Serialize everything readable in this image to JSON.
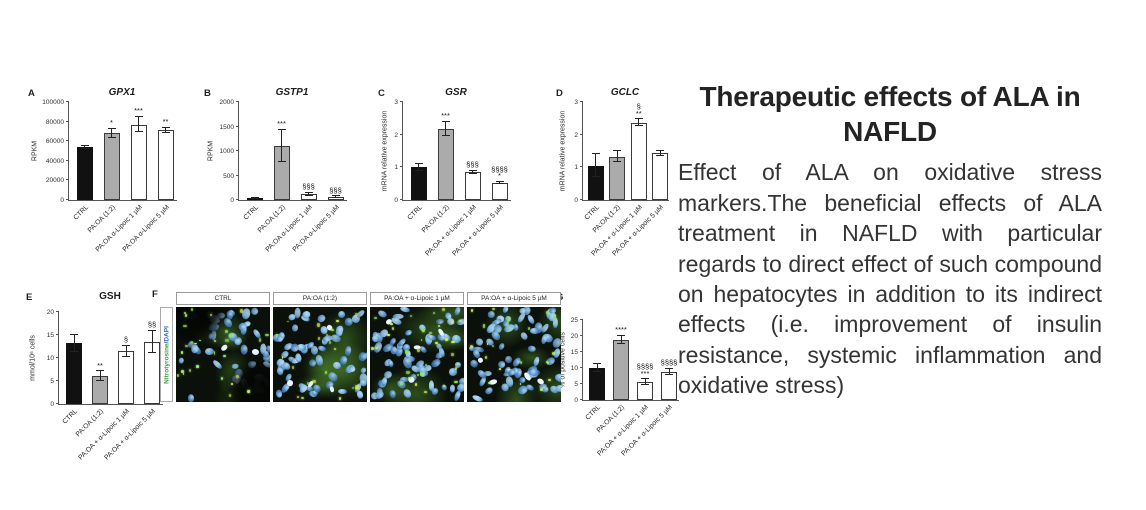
{
  "article": {
    "title": "Therapeutic effects of ALA in NAFLD",
    "body": "Effect of ALA on oxidative stress markers.The beneficial effects of ALA treatment in NAFLD with particular regards to direct effect of such compound on hepatocytes in addition to its indirect effects (i.e. improvement of insulin resistance, systemic inflammation and oxidative stress)"
  },
  "style": {
    "bar_black": "#111111",
    "bar_gray": "#ababab",
    "bar_white": "#ffffff",
    "axis_color": "#555555",
    "nitrotyrosine_green": "#3f9e46",
    "dapi_blue": "#3a64b5"
  },
  "figure": {
    "panel_f": {
      "letter": "F",
      "ylabel_parts": [
        {
          "text": "Nitrotyrosine",
          "color": "#3f9e46"
        },
        {
          "text": "/DAPI",
          "color": "#3a64b5"
        }
      ],
      "image_titles": [
        "CTRL",
        "PA:OA (1:2)",
        "PA:OA + α-Lipoic 1 µM",
        "PA:OA + α-Lipoic 5 µM"
      ]
    }
  },
  "chart_data": [
    {
      "type": "bar",
      "letter": "A",
      "title": "GPX1",
      "title_italic": true,
      "ylabel": "RPKM",
      "ylim": [
        0,
        100000
      ],
      "yticks": [
        0,
        20000,
        40000,
        60000,
        80000,
        100000
      ],
      "categories": [
        "CTRL",
        "PA:OA (1:2)",
        "PA:OA α-Lipoic 1 µM",
        "PA:OA α-Lipoic 5 µM"
      ],
      "values": [
        54000,
        68000,
        77000,
        71000
      ],
      "errors": [
        1500,
        4500,
        8000,
        2500
      ],
      "sig": [
        [],
        [
          "*"
        ],
        [
          "***"
        ],
        [
          "**"
        ]
      ],
      "fills": [
        "black",
        "gray",
        "white",
        "white"
      ]
    },
    {
      "type": "bar",
      "letter": "B",
      "title": "GSTP1",
      "title_italic": true,
      "ylabel": "RPKM",
      "ylim": [
        0,
        2000
      ],
      "yticks": [
        0,
        500,
        1000,
        1500,
        2000
      ],
      "categories": [
        "CTRL",
        "PA:OA (1:2)",
        "PA:OA α-Lipoic 1 µM",
        "PA:OA α-Lipoic 5 µM"
      ],
      "values": [
        35,
        1100,
        115,
        60
      ],
      "errors": [
        12,
        330,
        30,
        18
      ],
      "sig": [
        [],
        [
          "***"
        ],
        [
          "§§§"
        ],
        [
          "§§§"
        ]
      ],
      "fills": [
        "black",
        "gray",
        "white",
        "white"
      ]
    },
    {
      "type": "bar",
      "letter": "C",
      "title": "GSR",
      "title_italic": true,
      "ylabel": "mRNA relative expression",
      "ylim": [
        0,
        3
      ],
      "yticks": [
        0,
        1,
        2,
        3
      ],
      "categories": [
        "CTRL",
        "PA:OA (1:2)",
        "PA:OA + α-Lipoic 1 µM",
        "PA:OA + α-Lipoic 5 µM"
      ],
      "values": [
        1.0,
        2.18,
        0.85,
        0.52
      ],
      "errors": [
        0.1,
        0.22,
        0.05,
        0.04
      ],
      "sig": [
        [],
        [
          "***"
        ],
        [
          "§§§"
        ],
        [
          "§§§§",
          "*"
        ]
      ],
      "fills": [
        "black",
        "gray",
        "white",
        "white"
      ]
    },
    {
      "type": "bar",
      "letter": "D",
      "title": "GCLC",
      "title_italic": true,
      "ylabel": "mRNA relative expression",
      "ylim": [
        0,
        3
      ],
      "yticks": [
        0,
        1,
        2,
        3
      ],
      "categories": [
        "CTRL",
        "PA:OA (1:2)",
        "PA:OA + α-Lipoic 1 µM",
        "PA:OA + α-Lipoic 5 µM"
      ],
      "values": [
        1.05,
        1.33,
        2.37,
        1.43
      ],
      "errors": [
        0.35,
        0.18,
        0.1,
        0.07
      ],
      "sig": [
        [],
        [],
        [
          "§",
          "**"
        ],
        []
      ],
      "fills": [
        "black",
        "gray",
        "white",
        "white"
      ]
    },
    {
      "type": "bar",
      "letter": "E",
      "title": "GSH",
      "title_italic": false,
      "ylabel": "mmol/10⁶ cells",
      "ylim": [
        0,
        20
      ],
      "yticks": [
        0,
        5,
        10,
        15,
        20
      ],
      "categories": [
        "CTRL",
        "PA:OA (1:2)",
        "PA:OA + α-Lipoic 1 µM",
        "PA:OA + α-Lipoic 5 µM"
      ],
      "values": [
        13.2,
        6.0,
        11.5,
        13.5
      ],
      "errors": [
        1.9,
        1.1,
        1.2,
        2.4
      ],
      "sig": [
        [],
        [
          "**"
        ],
        [
          "§"
        ],
        [
          "§§"
        ]
      ],
      "fills": [
        "black",
        "gray",
        "white",
        "white"
      ]
    },
    {
      "type": "bar",
      "letter": "G",
      "title": "",
      "title_italic": false,
      "ylabel": "% of positive cells",
      "ylim": [
        0,
        25
      ],
      "yticks": [
        0,
        5,
        10,
        15,
        20,
        25
      ],
      "categories": [
        "CTRL",
        "PA:OA (1:2)",
        "PA:OA + α-Lipoic 1 µM",
        "PA:OA + α-Lipoic 5 µM"
      ],
      "values": [
        10.0,
        18.8,
        5.6,
        8.8
      ],
      "errors": [
        1.2,
        1.3,
        0.9,
        1.0
      ],
      "sig": [
        [],
        [
          "****"
        ],
        [
          "§§§§",
          "***"
        ],
        [
          "§§§§"
        ]
      ],
      "fills": [
        "black",
        "gray",
        "white",
        "white"
      ]
    }
  ]
}
